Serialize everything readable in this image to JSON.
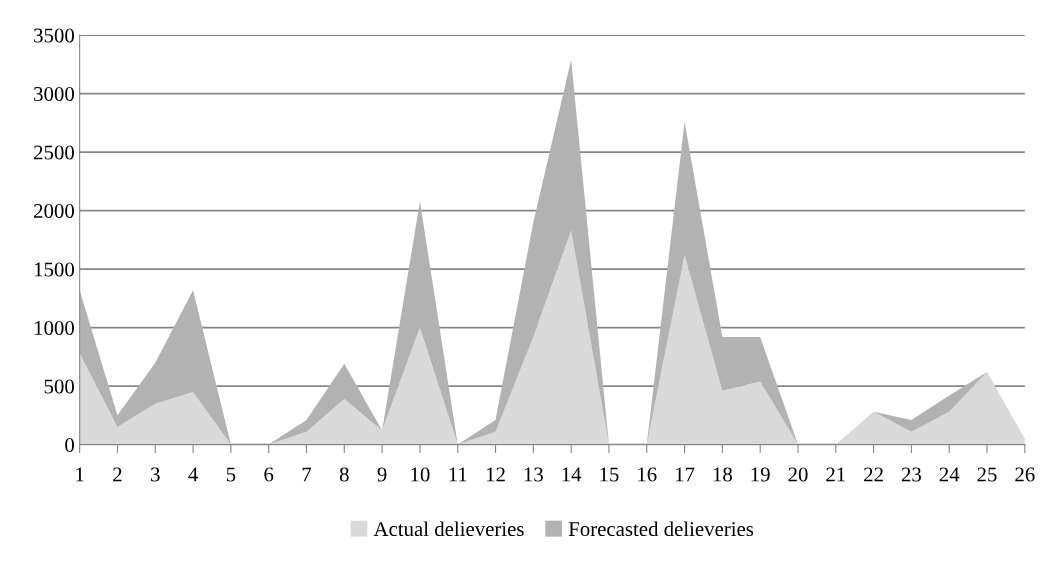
{
  "chart_data": {
    "type": "area",
    "stacked": true,
    "categories": [
      "1",
      "2",
      "3",
      "4",
      "5",
      "6",
      "7",
      "8",
      "9",
      "10",
      "11",
      "12",
      "13",
      "14",
      "15",
      "16",
      "17",
      "18",
      "19",
      "20",
      "21",
      "22",
      "23",
      "24",
      "25",
      "26"
    ],
    "series": [
      {
        "name": "Actual delieveries",
        "color": "#d9d9d9",
        "values": [
          780,
          150,
          350,
          450,
          0,
          0,
          110,
          390,
          120,
          1000,
          0,
          110,
          920,
          1830,
          0,
          0,
          1620,
          460,
          540,
          0,
          0,
          280,
          110,
          280,
          620,
          50
        ]
      },
      {
        "name": "Forecasted delieveries",
        "color": "#b2b2b2",
        "values": [
          540,
          100,
          350,
          870,
          0,
          0,
          100,
          300,
          0,
          1080,
          0,
          100,
          980,
          1460,
          0,
          0,
          1140,
          460,
          380,
          0,
          0,
          0,
          100,
          140,
          0,
          0
        ]
      }
    ],
    "ylim": [
      0,
      3500
    ],
    "yticks": [
      0,
      500,
      1000,
      1500,
      2000,
      2500,
      3000,
      3500
    ],
    "grid": "y",
    "legend": "bottom"
  }
}
